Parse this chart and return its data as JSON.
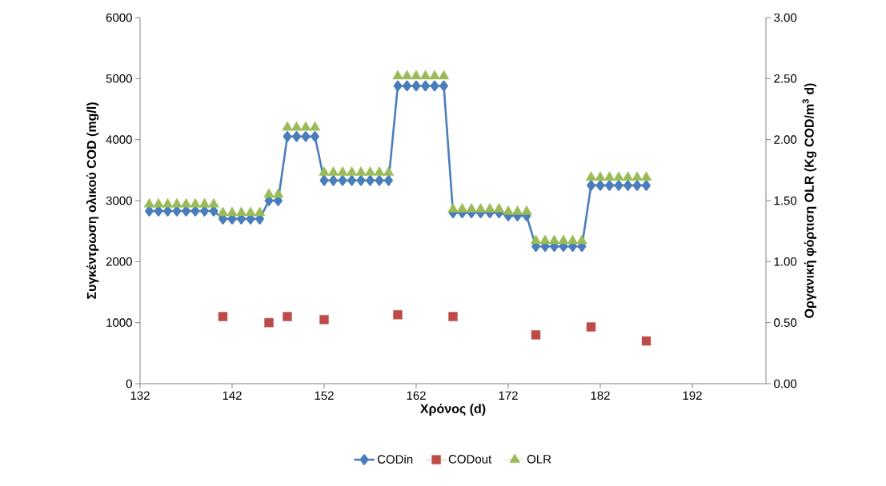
{
  "chart_data": {
    "type": "line",
    "xlabel": "Χρόνος (d)",
    "ylabel": "Συγκέντρωση ολικού COD (mg/l)",
    "y2label": "Οργανική φόρτιση OLR (Kg COD/m$^{3}$ d)",
    "xlim": [
      132,
      200
    ],
    "xticks": [
      132,
      142,
      152,
      162,
      172,
      182,
      192
    ],
    "ylim": [
      0,
      6000
    ],
    "yticks": [
      0,
      1000,
      2000,
      3000,
      4000,
      5000,
      6000
    ],
    "y2lim": [
      0,
      3
    ],
    "y2ticks": [
      {
        "value": 0,
        "label": "0.00"
      },
      {
        "value": 0.5,
        "label": "0.50"
      },
      {
        "value": 1,
        "label": "1.00"
      },
      {
        "value": 1.5,
        "label": "1.50"
      },
      {
        "value": 2,
        "label": "2.00"
      },
      {
        "value": 2.5,
        "label": "2.50"
      },
      {
        "value": 3,
        "label": "3.00"
      }
    ],
    "legend": "bottom",
    "grid": false,
    "series": [
      {
        "name": "CODin",
        "marker": "diamond",
        "color": "#4a7ebb",
        "x": [
          133,
          134,
          135,
          136,
          137,
          138,
          139,
          140,
          141,
          142,
          143,
          144,
          145,
          146,
          147,
          148,
          149,
          150,
          151,
          152,
          153,
          154,
          155,
          156,
          157,
          158,
          159,
          160,
          161,
          162,
          163,
          164,
          165,
          166,
          167,
          168,
          169,
          170,
          171,
          172,
          173,
          174,
          175,
          176,
          177,
          178,
          179,
          180,
          181,
          182,
          183,
          184,
          185,
          186,
          187
        ],
        "values": [
          2830,
          2830,
          2830,
          2830,
          2830,
          2830,
          2830,
          2830,
          2700,
          2700,
          2700,
          2700,
          2700,
          3000,
          3000,
          4050,
          4050,
          4050,
          4050,
          3330,
          3330,
          3330,
          3330,
          3330,
          3330,
          3330,
          3330,
          4880,
          4880,
          4880,
          4880,
          4880,
          4880,
          2800,
          2800,
          2800,
          2800,
          2800,
          2800,
          2750,
          2750,
          2750,
          2250,
          2250,
          2250,
          2250,
          2250,
          2250,
          3250,
          3250,
          3250,
          3250,
          3250,
          3250,
          3250
        ]
      },
      {
        "name": "CODout",
        "type": "scatter",
        "marker": "square",
        "color": "#be4b48",
        "x": [
          141,
          146,
          148,
          152,
          160,
          166,
          175,
          181,
          187
        ],
        "values": [
          1100,
          1000,
          1100,
          1050,
          1130,
          1100,
          800,
          930,
          700
        ]
      },
      {
        "name": "OLR",
        "type": "scatter",
        "marker": "triangle",
        "axis": "y2",
        "color": "#9bbb59",
        "x": [
          133,
          134,
          135,
          136,
          137,
          138,
          139,
          140,
          141,
          142,
          143,
          144,
          145,
          146,
          147,
          148,
          149,
          150,
          151,
          152,
          153,
          154,
          155,
          156,
          157,
          158,
          159,
          160,
          161,
          162,
          163,
          164,
          165,
          166,
          167,
          168,
          169,
          170,
          171,
          172,
          173,
          174,
          175,
          176,
          177,
          178,
          179,
          180,
          181,
          182,
          183,
          184,
          185,
          186,
          187
        ],
        "values": [
          1.47,
          1.47,
          1.47,
          1.47,
          1.47,
          1.47,
          1.47,
          1.47,
          1.4,
          1.4,
          1.4,
          1.4,
          1.4,
          1.55,
          1.55,
          2.1,
          2.1,
          2.1,
          2.1,
          1.73,
          1.73,
          1.73,
          1.73,
          1.73,
          1.73,
          1.73,
          1.73,
          2.52,
          2.52,
          2.52,
          2.52,
          2.52,
          2.52,
          1.43,
          1.43,
          1.43,
          1.43,
          1.43,
          1.43,
          1.41,
          1.41,
          1.41,
          1.17,
          1.17,
          1.17,
          1.17,
          1.17,
          1.17,
          1.69,
          1.69,
          1.69,
          1.69,
          1.69,
          1.69,
          1.69
        ]
      }
    ]
  }
}
